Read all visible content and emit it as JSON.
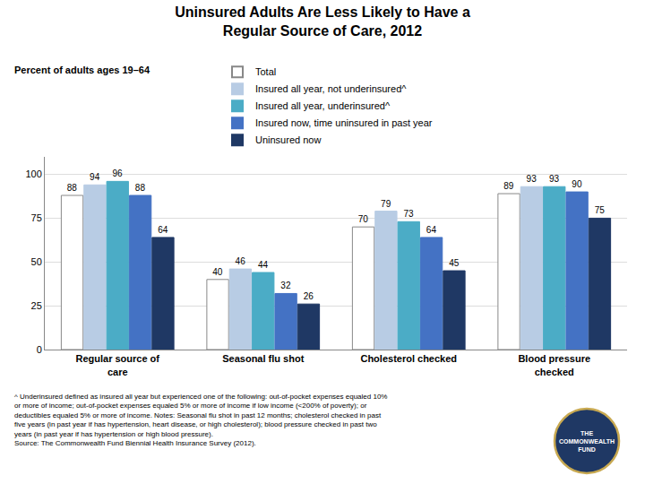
{
  "chart_data": {
    "type": "bar",
    "title": "Uninsured Adults Are Less Likely to Have a\nRegular Source of Care, 2012",
    "subtitle": "Percent of adults ages 19–64",
    "categories": [
      "Regular source of\ncare",
      "Seasonal flu shot",
      "Cholesterol checked",
      "Blood pressure\nchecked"
    ],
    "series": [
      {
        "name": "Total",
        "color": "#ffffff",
        "values": [
          88,
          40,
          70,
          89
        ]
      },
      {
        "name": "Insured all year, not underinsured^",
        "color": "#b8cce4",
        "values": [
          94,
          46,
          79,
          93
        ]
      },
      {
        "name": "Insured all year, underinsured^",
        "color": "#4bacc6",
        "values": [
          96,
          44,
          73,
          93
        ]
      },
      {
        "name": "Insured now, time uninsured in past year",
        "color": "#4472c4",
        "values": [
          88,
          32,
          64,
          90
        ]
      },
      {
        "name": "Uninsured now",
        "color": "#1f3864",
        "values": [
          64,
          26,
          45,
          75
        ]
      }
    ],
    "ylim": [
      0,
      110
    ],
    "yticks": [
      0,
      25,
      50,
      75,
      100
    ],
    "grid": true,
    "legend": "top",
    "data_labels": true,
    "annotations": [
      "^ Underinsured defined as insured all year but experienced one of the following: out-of-pocket expenses equaled 10%\nor more of income; out-of-pocket expenses equaled 5% or more of income if low income (<200% of poverty); or\ndeductibles equaled 5% or more of income. Notes: Seasonal flu shot in past 12 months; cholesterol checked in past\nfive years (in past year if has hypertension, heart disease, or high cholesterol); blood pressure checked in past two\nyears (in past year if has hypertension or high blood pressure).\nSource: The Commonwealth Fund Biennial Health Insurance Survey (2012).",
      "THE\nCOMMONWEALTH\nFUND"
    ]
  }
}
